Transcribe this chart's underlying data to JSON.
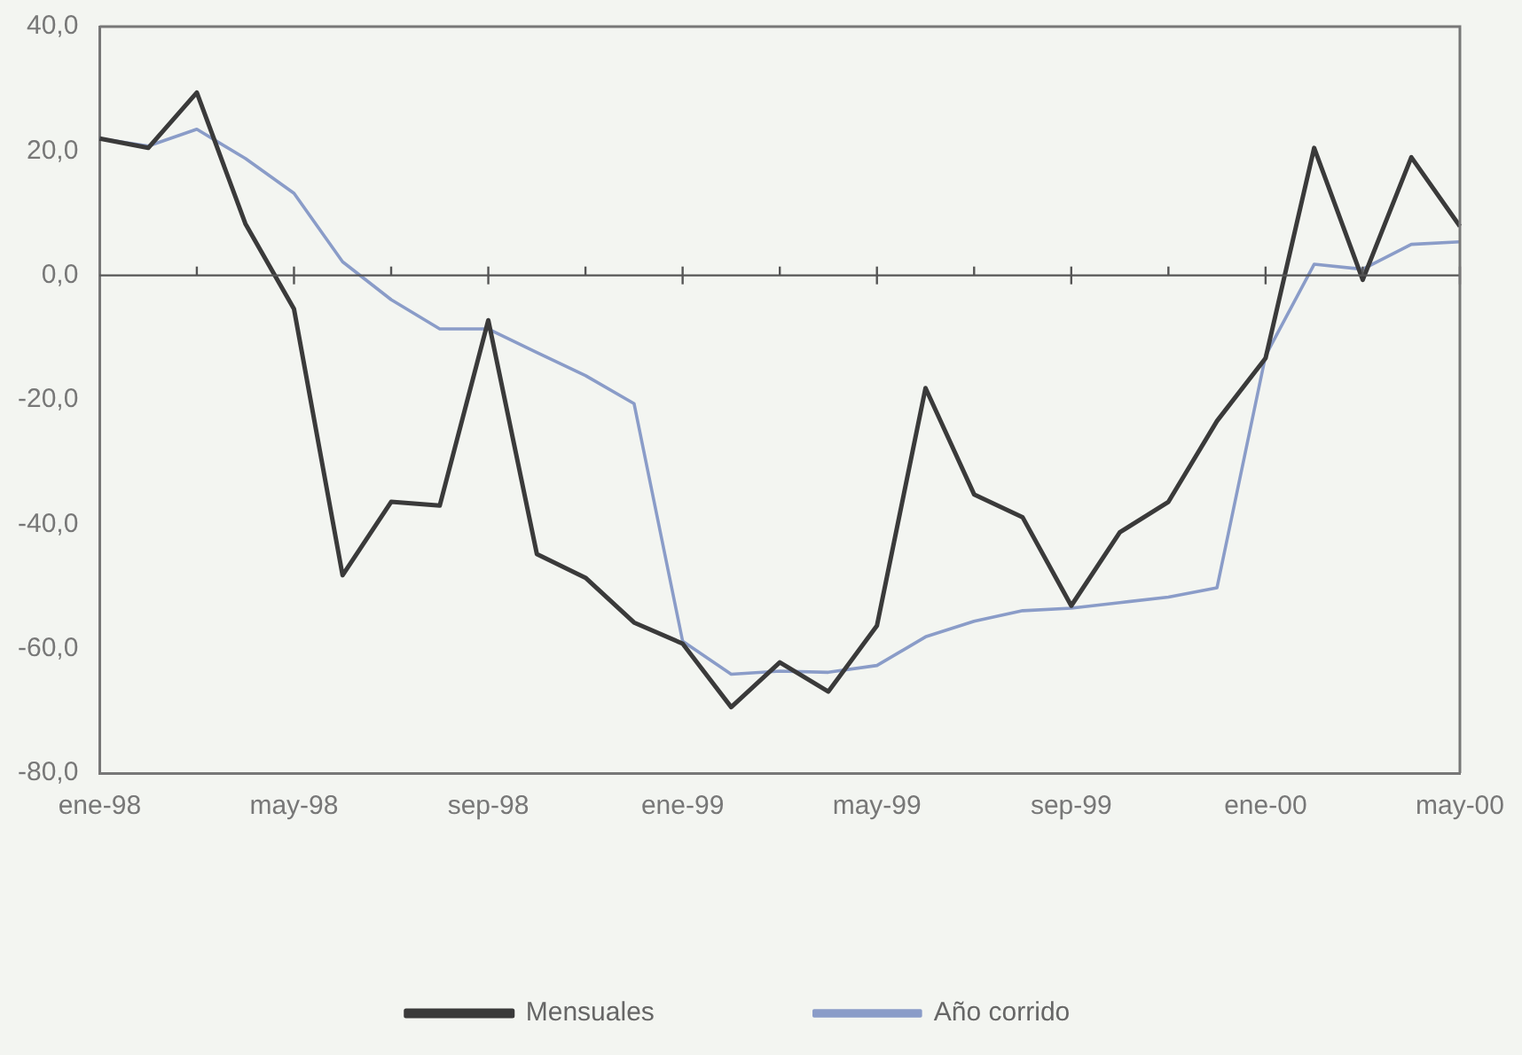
{
  "chart_data": {
    "type": "line",
    "categories": [
      "ene-98",
      null,
      null,
      null,
      "may-98",
      null,
      null,
      null,
      "sep-98",
      null,
      null,
      null,
      "ene-99",
      null,
      null,
      null,
      "may-99",
      null,
      null,
      null,
      "sep-99",
      null,
      null,
      null,
      "ene-00",
      null,
      null,
      null,
      "may-00"
    ],
    "series": [
      {
        "name": "Mensuales",
        "color": "#3a3a3a",
        "values": [
          22,
          20.5,
          29.4,
          8.3,
          -5.4,
          -48.2,
          -36.4,
          -37,
          -7.2,
          -44.8,
          -48.6,
          -55.8,
          -59.2,
          -69.4,
          -62.2,
          -66.9,
          -56.3,
          -18.1,
          -35.2,
          -38.9,
          -53.1,
          -41.3,
          -36.4,
          -23.4,
          -13.3,
          20.5,
          -0.7,
          19,
          7.9
        ]
      },
      {
        "name": "Año corrido",
        "color": "#8a9cc8",
        "values": [
          22,
          20.8,
          23.5,
          18.8,
          13.2,
          2.2,
          -3.9,
          -8.6,
          -8.6,
          -12.4,
          -16.1,
          -20.6,
          -58.8,
          -64.1,
          -63.6,
          -63.8,
          -62.7,
          -58.1,
          -55.6,
          -53.9,
          -53.5,
          -52.6,
          -51.7,
          -50.2,
          -12.9,
          1.8,
          1,
          5,
          5.4
        ]
      }
    ],
    "ylim": [
      -80,
      40
    ],
    "yticks": [
      {
        "value": -80,
        "label": "-80,0"
      },
      {
        "value": -60,
        "label": "-60,0"
      },
      {
        "value": -40,
        "label": "-40,0"
      },
      {
        "value": -20,
        "label": "-20,0"
      },
      {
        "value": 0,
        "label": "0,0"
      },
      {
        "value": 20,
        "label": "20,0"
      },
      {
        "value": 40,
        "label": "40,0"
      }
    ],
    "ref_lines": [
      {
        "axis": "y",
        "value": 0,
        "label": null,
        "color": "#555555"
      }
    ],
    "grid": false,
    "legend": "bottom",
    "marker": "none",
    "line_style": "solid"
  }
}
